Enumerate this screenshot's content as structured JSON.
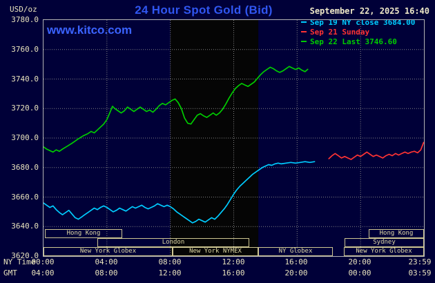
{
  "header": {
    "unit": "USD/oz",
    "title": "24 Hour Spot Gold (Bid)",
    "datetime": "September 22, 2025 16:40",
    "watermark": "www.kitco.com"
  },
  "axes": {
    "ny_caption": "NY Time",
    "gmt_caption": "GMT",
    "y_ticks": [
      "3780.0",
      "3760.0",
      "3740.0",
      "3720.0",
      "3700.0",
      "3680.0",
      "3660.0",
      "3640.0",
      "3620.0"
    ],
    "x_ticks": [
      {
        "h": 0,
        "ny": "00:00",
        "gmt": "04:00"
      },
      {
        "h": 4,
        "ny": "04:00",
        "gmt": "08:00"
      },
      {
        "h": 8,
        "ny": "08:00",
        "gmt": "12:00"
      },
      {
        "h": 12,
        "ny": "12:00",
        "gmt": "16:00"
      },
      {
        "h": 16,
        "ny": "16:00",
        "gmt": "20:00"
      },
      {
        "h": 20,
        "ny": "20:00",
        "gmt": "00:00"
      },
      {
        "h": 23.98,
        "ny": "23:59",
        "gmt": "03:59"
      }
    ]
  },
  "colors": {
    "background": "#000038",
    "band": "#050505",
    "grid": "#848484",
    "plot_border": "#b5b5b5",
    "axis_text": "#e9e3bd",
    "title_blue": "#3056f0",
    "watermark_blue": "#3b63ff",
    "session": "#cfc792"
  },
  "chart_data": {
    "type": "line",
    "title": "24 Hour Spot Gold (Bid)",
    "ylabel": "USD/oz",
    "xlim_hours": [
      0,
      24
    ],
    "ylim": [
      3620,
      3780
    ],
    "grid": true,
    "legend_position": "top-right",
    "y_gridlines": [
      3640,
      3660,
      3680,
      3700,
      3720,
      3740,
      3760
    ],
    "x_gridlines_hours": [
      4,
      8,
      12,
      16,
      20
    ],
    "nymex_band_hours": [
      8.0,
      13.55
    ],
    "series": [
      {
        "name": "Sep 19 NY close 3684.00",
        "color": "#00ccff",
        "points": [
          [
            0,
            3656
          ],
          [
            0.2,
            3654.5
          ],
          [
            0.4,
            3653
          ],
          [
            0.6,
            3654
          ],
          [
            0.8,
            3651.5
          ],
          [
            1,
            3649.5
          ],
          [
            1.2,
            3648
          ],
          [
            1.4,
            3649.5
          ],
          [
            1.6,
            3651
          ],
          [
            1.8,
            3648.5
          ],
          [
            2,
            3646
          ],
          [
            2.2,
            3645
          ],
          [
            2.4,
            3646.5
          ],
          [
            2.6,
            3648
          ],
          [
            2.8,
            3649.5
          ],
          [
            3,
            3651
          ],
          [
            3.2,
            3652.5
          ],
          [
            3.4,
            3651.5
          ],
          [
            3.6,
            3653
          ],
          [
            3.8,
            3654
          ],
          [
            4,
            3653
          ],
          [
            4.2,
            3651.5
          ],
          [
            4.4,
            3650
          ],
          [
            4.6,
            3651
          ],
          [
            4.8,
            3652.5
          ],
          [
            5,
            3651.5
          ],
          [
            5.2,
            3650.5
          ],
          [
            5.4,
            3652
          ],
          [
            5.6,
            3653.5
          ],
          [
            5.8,
            3652.5
          ],
          [
            6,
            3653.5
          ],
          [
            6.2,
            3654.5
          ],
          [
            6.4,
            3653
          ],
          [
            6.6,
            3652
          ],
          [
            6.8,
            3653
          ],
          [
            7,
            3654
          ],
          [
            7.2,
            3655.5
          ],
          [
            7.4,
            3654.5
          ],
          [
            7.6,
            3653.5
          ],
          [
            7.8,
            3654.5
          ],
          [
            8,
            3653.5
          ],
          [
            8.2,
            3652
          ],
          [
            8.4,
            3650
          ],
          [
            8.6,
            3648.5
          ],
          [
            8.8,
            3647
          ],
          [
            9,
            3645.5
          ],
          [
            9.2,
            3644
          ],
          [
            9.4,
            3642.5
          ],
          [
            9.6,
            3643.5
          ],
          [
            9.8,
            3645
          ],
          [
            10,
            3644
          ],
          [
            10.2,
            3643
          ],
          [
            10.4,
            3644.5
          ],
          [
            10.6,
            3646
          ],
          [
            10.8,
            3645
          ],
          [
            11,
            3647
          ],
          [
            11.2,
            3649.5
          ],
          [
            11.4,
            3652
          ],
          [
            11.6,
            3655
          ],
          [
            11.8,
            3658.5
          ],
          [
            12,
            3662
          ],
          [
            12.2,
            3665
          ],
          [
            12.4,
            3667.5
          ],
          [
            12.6,
            3669.5
          ],
          [
            12.8,
            3671.5
          ],
          [
            13,
            3673.5
          ],
          [
            13.2,
            3675.5
          ],
          [
            13.4,
            3677
          ],
          [
            13.6,
            3678.5
          ],
          [
            13.8,
            3680
          ],
          [
            14,
            3681
          ],
          [
            14.2,
            3682
          ],
          [
            14.4,
            3681.5
          ],
          [
            14.6,
            3682.5
          ],
          [
            14.8,
            3683
          ],
          [
            15,
            3682.5
          ],
          [
            15.3,
            3683
          ],
          [
            15.6,
            3683.5
          ],
          [
            15.9,
            3683
          ],
          [
            16.2,
            3683.5
          ],
          [
            16.5,
            3684
          ],
          [
            16.8,
            3683.5
          ],
          [
            17.1,
            3684
          ]
        ]
      },
      {
        "name": "Sep 21 Sunday",
        "color": "#ff3333",
        "points": [
          [
            18,
            3686
          ],
          [
            18.2,
            3688
          ],
          [
            18.4,
            3689.5
          ],
          [
            18.6,
            3688
          ],
          [
            18.8,
            3686.5
          ],
          [
            19,
            3687.5
          ],
          [
            19.2,
            3686.5
          ],
          [
            19.4,
            3685.5
          ],
          [
            19.6,
            3687
          ],
          [
            19.8,
            3688.5
          ],
          [
            20,
            3687.5
          ],
          [
            20.2,
            3689
          ],
          [
            20.4,
            3690.5
          ],
          [
            20.6,
            3689
          ],
          [
            20.8,
            3687.5
          ],
          [
            21,
            3688.5
          ],
          [
            21.2,
            3687.5
          ],
          [
            21.4,
            3686.5
          ],
          [
            21.6,
            3688
          ],
          [
            21.8,
            3689
          ],
          [
            22,
            3688
          ],
          [
            22.2,
            3689.5
          ],
          [
            22.4,
            3688.5
          ],
          [
            22.6,
            3689.5
          ],
          [
            22.8,
            3690.5
          ],
          [
            23,
            3689.5
          ],
          [
            23.2,
            3690.5
          ],
          [
            23.4,
            3691
          ],
          [
            23.6,
            3690
          ],
          [
            23.8,
            3692
          ],
          [
            23.98,
            3697
          ]
        ]
      },
      {
        "name": "Sep 22 Last 3746.60",
        "color": "#00cc00",
        "points": [
          [
            0,
            3694
          ],
          [
            0.2,
            3692.5
          ],
          [
            0.4,
            3691.5
          ],
          [
            0.6,
            3690.5
          ],
          [
            0.8,
            3692
          ],
          [
            1,
            3691
          ],
          [
            1.2,
            3692.5
          ],
          [
            1.5,
            3694.5
          ],
          [
            1.8,
            3696.5
          ],
          [
            2,
            3698
          ],
          [
            2.2,
            3699.5
          ],
          [
            2.5,
            3701.5
          ],
          [
            2.8,
            3703
          ],
          [
            3,
            3704.5
          ],
          [
            3.2,
            3703.5
          ],
          [
            3.5,
            3706.5
          ],
          [
            3.8,
            3709.5
          ],
          [
            4,
            3712.5
          ],
          [
            4.2,
            3717.5
          ],
          [
            4.35,
            3721.5
          ],
          [
            4.5,
            3720
          ],
          [
            4.7,
            3718.5
          ],
          [
            4.9,
            3717
          ],
          [
            5.1,
            3718.5
          ],
          [
            5.3,
            3721
          ],
          [
            5.5,
            3719.5
          ],
          [
            5.7,
            3718
          ],
          [
            5.9,
            3719.5
          ],
          [
            6.1,
            3721
          ],
          [
            6.3,
            3719.5
          ],
          [
            6.5,
            3718
          ],
          [
            6.7,
            3719
          ],
          [
            6.9,
            3717.5
          ],
          [
            7.1,
            3719.5
          ],
          [
            7.3,
            3722
          ],
          [
            7.5,
            3723.5
          ],
          [
            7.7,
            3722.5
          ],
          [
            7.9,
            3724
          ],
          [
            8.1,
            3725.5
          ],
          [
            8.3,
            3726.5
          ],
          [
            8.5,
            3724
          ],
          [
            8.7,
            3720
          ],
          [
            8.9,
            3713.5
          ],
          [
            9.1,
            3710
          ],
          [
            9.3,
            3709.5
          ],
          [
            9.5,
            3712.5
          ],
          [
            9.7,
            3715.5
          ],
          [
            9.9,
            3716.5
          ],
          [
            10.1,
            3715
          ],
          [
            10.3,
            3714
          ],
          [
            10.5,
            3715.5
          ],
          [
            10.7,
            3717
          ],
          [
            10.9,
            3715.5
          ],
          [
            11.1,
            3717
          ],
          [
            11.3,
            3719.5
          ],
          [
            11.5,
            3723
          ],
          [
            11.7,
            3727
          ],
          [
            11.9,
            3730.5
          ],
          [
            12.1,
            3733.5
          ],
          [
            12.3,
            3735.5
          ],
          [
            12.5,
            3737
          ],
          [
            12.7,
            3736
          ],
          [
            12.9,
            3735
          ],
          [
            13.1,
            3736.5
          ],
          [
            13.3,
            3738
          ],
          [
            13.5,
            3740.5
          ],
          [
            13.7,
            3743
          ],
          [
            13.9,
            3745
          ],
          [
            14.1,
            3746.5
          ],
          [
            14.3,
            3748
          ],
          [
            14.5,
            3747
          ],
          [
            14.7,
            3745.5
          ],
          [
            14.9,
            3744.5
          ],
          [
            15.1,
            3745.5
          ],
          [
            15.3,
            3747
          ],
          [
            15.5,
            3748.5
          ],
          [
            15.7,
            3747.5
          ],
          [
            15.9,
            3746.5
          ],
          [
            16.1,
            3747.5
          ],
          [
            16.3,
            3746
          ],
          [
            16.5,
            3745
          ],
          [
            16.67,
            3746.6
          ]
        ]
      }
    ],
    "sessions": [
      {
        "row": 0,
        "label": "Hong Kong",
        "start": 0.1,
        "end": 5.0
      },
      {
        "row": 0,
        "label": "Hong Kong",
        "start": 20.5,
        "end": 24
      },
      {
        "row": 1,
        "label": "London",
        "start": 3.4,
        "end": 13.0
      },
      {
        "row": 1,
        "label": "Sydney",
        "start": 19.0,
        "end": 24
      },
      {
        "row": 2,
        "label": "New York Globex",
        "start": 0,
        "end": 8.15
      },
      {
        "row": 2,
        "label": "New York NYMEX",
        "start": 8.15,
        "end": 13.55
      },
      {
        "row": 2,
        "label": "NY Globex",
        "start": 13.55,
        "end": 18.25
      },
      {
        "row": 2,
        "label": "New York Globex",
        "start": 18.95,
        "end": 24
      }
    ]
  }
}
